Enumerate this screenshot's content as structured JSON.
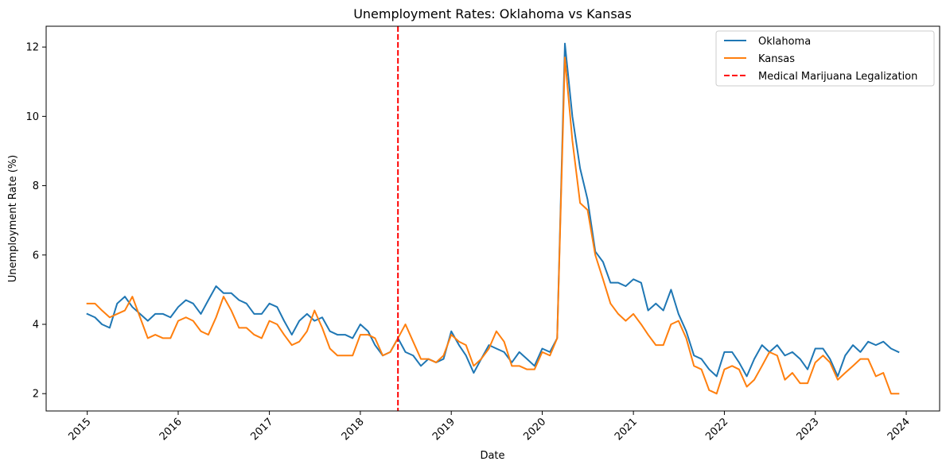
{
  "chart_data": {
    "type": "line",
    "title": "Unemployment Rates: Oklahoma vs Kansas",
    "xlabel": "Date",
    "ylabel": "Unemployment Rate (%)",
    "x_axis_type": "date",
    "xlim": [
      "2014-07-20",
      "2024-05-14"
    ],
    "ylim": [
      1.5,
      12.6
    ],
    "x_ticks": [
      "2015",
      "2016",
      "2017",
      "2018",
      "2019",
      "2020",
      "2021",
      "2022",
      "2023",
      "2024"
    ],
    "y_ticks": [
      2,
      4,
      6,
      8,
      10,
      12
    ],
    "grid": false,
    "legend_position": "top-right",
    "x": [
      "2015-01",
      "2015-02",
      "2015-03",
      "2015-04",
      "2015-05",
      "2015-06",
      "2015-07",
      "2015-08",
      "2015-09",
      "2015-10",
      "2015-11",
      "2015-12",
      "2016-01",
      "2016-02",
      "2016-03",
      "2016-04",
      "2016-05",
      "2016-06",
      "2016-07",
      "2016-08",
      "2016-09",
      "2016-10",
      "2016-11",
      "2016-12",
      "2017-01",
      "2017-02",
      "2017-03",
      "2017-04",
      "2017-05",
      "2017-06",
      "2017-07",
      "2017-08",
      "2017-09",
      "2017-10",
      "2017-11",
      "2017-12",
      "2018-01",
      "2018-02",
      "2018-03",
      "2018-04",
      "2018-05",
      "2018-06",
      "2018-07",
      "2018-08",
      "2018-09",
      "2018-10",
      "2018-11",
      "2018-12",
      "2019-01",
      "2019-02",
      "2019-03",
      "2019-04",
      "2019-05",
      "2019-06",
      "2019-07",
      "2019-08",
      "2019-09",
      "2019-10",
      "2019-11",
      "2019-12",
      "2020-01",
      "2020-02",
      "2020-03",
      "2020-04",
      "2020-05",
      "2020-06",
      "2020-07",
      "2020-08",
      "2020-09",
      "2020-10",
      "2020-11",
      "2020-12",
      "2021-01",
      "2021-02",
      "2021-03",
      "2021-04",
      "2021-05",
      "2021-06",
      "2021-07",
      "2021-08",
      "2021-09",
      "2021-10",
      "2021-11",
      "2021-12",
      "2022-01",
      "2022-02",
      "2022-03",
      "2022-04",
      "2022-05",
      "2022-06",
      "2022-07",
      "2022-08",
      "2022-09",
      "2022-10",
      "2022-11",
      "2022-12",
      "2023-01",
      "2023-02",
      "2023-03",
      "2023-04",
      "2023-05",
      "2023-06",
      "2023-07",
      "2023-08",
      "2023-09",
      "2023-10",
      "2023-11",
      "2023-12"
    ],
    "series": [
      {
        "name": "Oklahoma",
        "color": "#1f77b4",
        "values": [
          4.3,
          4.2,
          4.0,
          3.9,
          4.6,
          4.8,
          4.5,
          4.3,
          4.1,
          4.3,
          4.3,
          4.2,
          4.5,
          4.7,
          4.6,
          4.3,
          4.7,
          5.1,
          4.9,
          4.9,
          4.7,
          4.6,
          4.3,
          4.3,
          4.6,
          4.5,
          4.1,
          3.7,
          4.1,
          4.3,
          4.1,
          4.2,
          3.8,
          3.7,
          3.7,
          3.6,
          4.0,
          3.8,
          3.4,
          3.1,
          3.2,
          3.6,
          3.2,
          3.1,
          2.8,
          3.0,
          2.9,
          3.0,
          3.8,
          3.4,
          3.1,
          2.6,
          3.0,
          3.4,
          3.3,
          3.2,
          2.9,
          3.2,
          3.0,
          2.8,
          3.3,
          3.2,
          3.6,
          12.1,
          10.0,
          8.5,
          7.6,
          6.1,
          5.8,
          5.2,
          5.2,
          5.1,
          5.3,
          5.2,
          4.4,
          4.6,
          4.4,
          5.0,
          4.3,
          3.8,
          3.1,
          3.0,
          2.7,
          2.5,
          3.2,
          3.2,
          2.9,
          2.5,
          3.0,
          3.4,
          3.2,
          3.4,
          3.1,
          3.2,
          3.0,
          2.7,
          3.3,
          3.3,
          3.0,
          2.5,
          3.1,
          3.4,
          3.2,
          3.5,
          3.4,
          3.5,
          3.3,
          3.2
        ]
      },
      {
        "name": "Kansas",
        "color": "#ff7f0e",
        "values": [
          4.6,
          4.6,
          4.4,
          4.2,
          4.3,
          4.4,
          4.8,
          4.2,
          3.6,
          3.7,
          3.6,
          3.6,
          4.1,
          4.2,
          4.1,
          3.8,
          3.7,
          4.2,
          4.8,
          4.4,
          3.9,
          3.9,
          3.7,
          3.6,
          4.1,
          4.0,
          3.7,
          3.4,
          3.5,
          3.8,
          4.4,
          3.9,
          3.3,
          3.1,
          3.1,
          3.1,
          3.7,
          3.7,
          3.6,
          3.1,
          3.2,
          3.6,
          4.0,
          3.5,
          3.0,
          3.0,
          2.9,
          3.1,
          3.7,
          3.5,
          3.4,
          2.8,
          3.0,
          3.3,
          3.8,
          3.5,
          2.8,
          2.8,
          2.7,
          2.7,
          3.2,
          3.1,
          3.6,
          11.7,
          9.3,
          7.5,
          7.3,
          6.0,
          5.3,
          4.6,
          4.3,
          4.1,
          4.3,
          4.0,
          3.7,
          3.4,
          3.4,
          4.0,
          4.1,
          3.6,
          2.8,
          2.7,
          2.1,
          2.0,
          2.7,
          2.8,
          2.7,
          2.2,
          2.4,
          2.8,
          3.2,
          3.1,
          2.4,
          2.6,
          2.3,
          2.3,
          2.9,
          3.1,
          2.9,
          2.4,
          2.6,
          2.8,
          3.0,
          3.0,
          2.5,
          2.6,
          2.0,
          2.0
        ]
      }
    ],
    "reference_line": {
      "name": "Medical Marijuana Legalization",
      "x": "2018-06-01",
      "color": "#ff0000",
      "style": "dashed"
    }
  }
}
